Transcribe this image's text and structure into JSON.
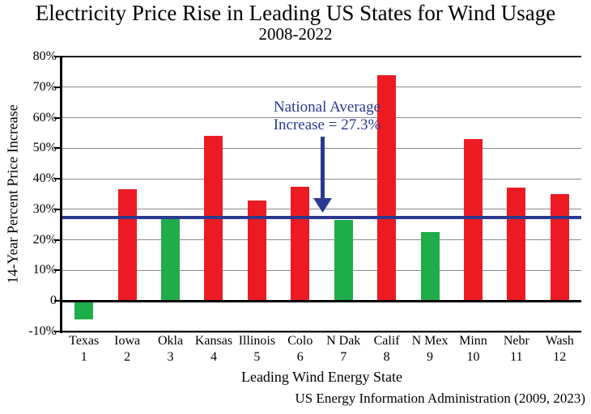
{
  "chart_data": {
    "type": "bar",
    "title": "Electricity Price Rise in Leading US States for Wind Usage",
    "subtitle": "2008-2022",
    "ylabel": "14-Year Percent Price Increase",
    "xlabel": "Leading Wind Energy State",
    "source": "US Energy Information Administration (2009, 2023)",
    "categories": [
      "Texas",
      "Iowa",
      "Okla",
      "Kansas",
      "Illinois",
      "Colo",
      "N Dak",
      "Calif",
      "N Mex",
      "Minn",
      "Nebr",
      "Wash"
    ],
    "ranks": [
      "1",
      "2",
      "3",
      "4",
      "5",
      "6",
      "7",
      "8",
      "9",
      "10",
      "11",
      "12"
    ],
    "values": [
      -6,
      36.5,
      27,
      54,
      33,
      37.5,
      26.5,
      74,
      22.5,
      53,
      37,
      35
    ],
    "colors": [
      "green",
      "red",
      "green",
      "red",
      "red",
      "red",
      "green",
      "red",
      "green",
      "red",
      "red",
      "red"
    ],
    "palette": {
      "red": "#EC1B23",
      "green": "#1FAC4B"
    },
    "ylim": [
      -10,
      80
    ],
    "ytick_interval": 10,
    "ytick_labels": [
      "80%",
      "70%",
      "60%",
      "50%",
      "40%",
      "30%",
      "20%",
      "10%",
      "0",
      "-10%"
    ],
    "grid": true,
    "gridline_color": "#8A8A8A",
    "axis_color": "#000000",
    "legend": null,
    "national_average": {
      "value": 27.3,
      "label_line1": "National Average",
      "label_line2": "Increase = 27.3%",
      "color": "#2B3990"
    }
  }
}
